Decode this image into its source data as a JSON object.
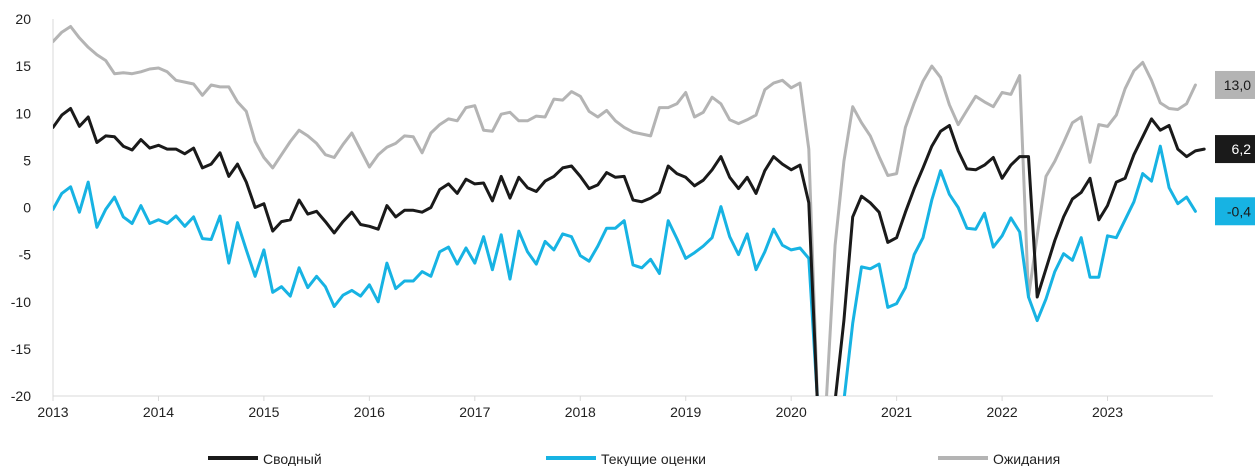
{
  "colors": {
    "svodny": "#1a1a1a",
    "tekushchie": "#17b3e3",
    "ozhidaniya": "#b4b4b4",
    "axis": "#d9d9d9",
    "text": "#222222"
  },
  "chart_data": {
    "type": "line",
    "x_start": 2013.0,
    "x_step_months": 1,
    "xlim": [
      2013,
      2024
    ],
    "ylim": [
      -20,
      20
    ],
    "xticks": [
      "2013",
      "2014",
      "2015",
      "2016",
      "2017",
      "2018",
      "2019",
      "2020",
      "2021",
      "2022",
      "2023"
    ],
    "yticks": [
      "20",
      "15",
      "10",
      "5",
      "0",
      "-5",
      "-10",
      "-15",
      "-20"
    ],
    "legend_position": "bottom",
    "grid": false,
    "series": [
      {
        "name": "Сводный",
        "color_key": "svodny",
        "end_label": "6,2",
        "values": [
          8.5,
          9.8,
          10.5,
          8.6,
          9.6,
          6.9,
          7.6,
          7.5,
          6.5,
          6.1,
          7.2,
          6.3,
          6.6,
          6.2,
          6.2,
          5.7,
          6.3,
          4.2,
          4.6,
          5.8,
          3.3,
          4.6,
          2.7,
          0.0,
          0.4,
          -2.5,
          -1.5,
          -1.3,
          0.8,
          -0.7,
          -0.4,
          -1.5,
          -2.7,
          -1.5,
          -0.5,
          -1.8,
          -2.0,
          -2.3,
          0.2,
          -1.0,
          -0.3,
          -0.3,
          -0.5,
          0.0,
          1.9,
          2.5,
          1.5,
          3.0,
          2.5,
          2.6,
          0.7,
          3.3,
          1.0,
          3.2,
          2.1,
          1.7,
          2.8,
          3.3,
          4.2,
          4.4,
          3.3,
          2.0,
          2.4,
          3.7,
          3.2,
          3.3,
          0.8,
          0.6,
          1.0,
          1.6,
          4.4,
          3.6,
          3.2,
          2.3,
          2.9,
          4.0,
          5.4,
          3.2,
          2.0,
          3.2,
          1.5,
          3.9,
          5.4,
          4.6,
          4.0,
          4.5,
          0.5,
          -21.0,
          null,
          -20.5,
          -12.0,
          -1.0,
          1.2,
          0.5,
          -0.5,
          -3.7,
          -3.2,
          -0.5,
          2.0,
          4.2,
          6.5,
          8.1,
          8.7,
          6.0,
          4.1,
          4.0,
          4.5,
          5.3,
          3.1,
          4.5,
          5.4,
          5.4,
          -9.5,
          -6.5,
          -3.5,
          -1.0,
          0.9,
          1.6,
          3.1,
          -1.3,
          0.2,
          2.7,
          3.1,
          5.6,
          7.5,
          9.4,
          8.2,
          8.7,
          6.2,
          5.4,
          6.0,
          6.2
        ]
      },
      {
        "name": "Текущие оценки",
        "color_key": "tekushchie",
        "end_label": "-0,4",
        "values": [
          -0.2,
          1.5,
          2.2,
          -0.5,
          2.7,
          -2.1,
          -0.2,
          1.1,
          -1.0,
          -1.7,
          0.2,
          -1.7,
          -1.3,
          -1.7,
          -0.9,
          -2.0,
          -1.0,
          -3.3,
          -3.4,
          -0.9,
          -5.9,
          -1.6,
          -4.5,
          -7.3,
          -4.5,
          -9.0,
          -8.4,
          -9.4,
          -6.4,
          -8.5,
          -7.3,
          -8.4,
          -10.5,
          -9.3,
          -8.8,
          -9.4,
          -8.2,
          -10.0,
          -5.9,
          -8.6,
          -7.8,
          -7.8,
          -6.8,
          -7.3,
          -4.7,
          -4.2,
          -6.0,
          -4.3,
          -5.9,
          -3.1,
          -6.6,
          -2.9,
          -7.6,
          -2.5,
          -4.7,
          -6.0,
          -3.6,
          -4.5,
          -2.8,
          -3.1,
          -5.1,
          -5.7,
          -4.1,
          -2.2,
          -2.2,
          -1.4,
          -6.1,
          -6.4,
          -5.5,
          -7.0,
          -1.4,
          -3.3,
          -5.4,
          -4.8,
          -4.1,
          -3.2,
          0.1,
          -3.1,
          -5.0,
          -2.8,
          -6.6,
          -4.7,
          -2.3,
          -4.0,
          -4.5,
          -4.3,
          -5.4,
          -20.5,
          null,
          null,
          -20.5,
          -12.3,
          -6.3,
          -6.5,
          -6.0,
          -10.6,
          -10.2,
          -8.5,
          -5.0,
          -3.2,
          0.8,
          3.9,
          1.4,
          0.0,
          -2.2,
          -2.3,
          -0.6,
          -4.2,
          -3.0,
          -1.1,
          -2.6,
          -9.5,
          -12.0,
          -9.7,
          -6.8,
          -4.9,
          -5.6,
          -3.2,
          -7.4,
          -7.4,
          -3.0,
          -3.2,
          -1.3,
          0.6,
          3.6,
          2.8,
          6.5,
          2.1,
          0.4,
          1.1,
          -0.4
        ]
      },
      {
        "name": "Ожидания",
        "color_key": "ozhidaniya",
        "end_label": "13,0",
        "values": [
          17.6,
          18.6,
          19.2,
          18.0,
          17.0,
          16.2,
          15.6,
          14.2,
          14.3,
          14.2,
          14.4,
          14.7,
          14.8,
          14.4,
          13.5,
          13.3,
          13.1,
          11.9,
          13.0,
          12.8,
          12.8,
          11.2,
          10.2,
          7.0,
          5.3,
          4.2,
          5.6,
          7.0,
          8.2,
          7.6,
          6.8,
          5.6,
          5.3,
          6.7,
          7.9,
          6.1,
          4.3,
          5.6,
          6.4,
          6.8,
          7.6,
          7.5,
          5.8,
          7.9,
          8.8,
          9.4,
          9.2,
          10.6,
          10.8,
          8.2,
          8.1,
          9.9,
          10.1,
          9.2,
          9.2,
          9.7,
          9.6,
          11.5,
          11.4,
          12.3,
          11.8,
          10.2,
          9.6,
          10.3,
          9.2,
          8.5,
          8.0,
          7.8,
          7.6,
          10.6,
          10.6,
          11.0,
          12.2,
          9.6,
          10.1,
          11.7,
          11.0,
          9.3,
          8.9,
          9.3,
          9.8,
          12.5,
          13.2,
          13.5,
          12.7,
          13.2,
          6.2,
          -20.5,
          -20.5,
          -4.0,
          4.9,
          10.7,
          9.0,
          7.6,
          5.4,
          3.4,
          3.6,
          8.5,
          11.1,
          13.4,
          15.0,
          13.8,
          10.9,
          8.8,
          10.3,
          11.8,
          11.2,
          10.7,
          12.2,
          12.0,
          14.0,
          -9.5,
          -3.0,
          3.3,
          4.9,
          6.9,
          9.0,
          9.6,
          4.8,
          8.8,
          8.6,
          9.8,
          12.6,
          14.5,
          15.4,
          13.5,
          11.1,
          10.5,
          10.4,
          11.0,
          13.0
        ]
      }
    ]
  }
}
